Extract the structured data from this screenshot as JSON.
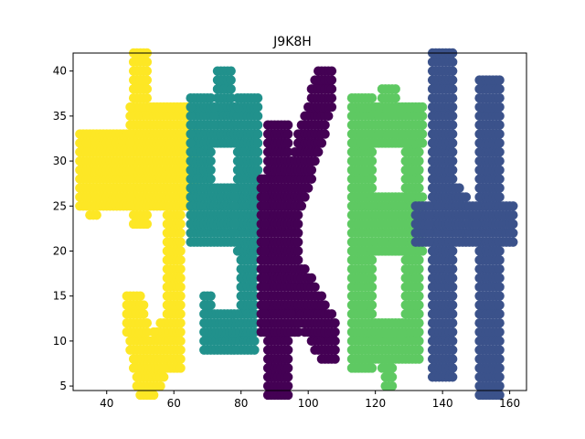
{
  "chart_data": {
    "type": "scatter",
    "title": "J9K8H",
    "xlabel": "",
    "ylabel": "",
    "xlim": [
      30,
      165
    ],
    "ylim": [
      4.5,
      42
    ],
    "xticks": [
      40,
      60,
      80,
      100,
      120,
      140,
      160
    ],
    "yticks": [
      5,
      10,
      15,
      20,
      25,
      30,
      35,
      40
    ],
    "grid": false,
    "legend": "none",
    "colors": {
      "J": "#fde725",
      "9": "#21918c",
      "K": "#440154",
      "8": "#5ec962",
      "H": "#3b528b"
    },
    "series": [
      {
        "letter": "J",
        "color_key": "J",
        "strokes": [
          {
            "x1": 50,
            "y1": 40,
            "x2": 50,
            "y2": 25,
            "w": 2
          },
          {
            "x1": 48,
            "y1": 35,
            "x2": 63,
            "y2": 35,
            "w": 1
          },
          {
            "x1": 36,
            "y1": 32,
            "x2": 36,
            "y2": 25,
            "w": 1
          },
          {
            "x1": 36,
            "y1": 29,
            "x2": 63,
            "y2": 29,
            "w": 4
          },
          {
            "x1": 60,
            "y1": 29,
            "x2": 60,
            "y2": 9,
            "w": 2
          },
          {
            "x1": 60,
            "y1": 11,
            "x2": 52,
            "y2": 6,
            "w": 2
          },
          {
            "x1": 52,
            "y1": 6,
            "x2": 48,
            "y2": 13,
            "w": 2
          }
        ]
      },
      {
        "letter": "9",
        "color_key": "9",
        "strokes": [
          {
            "x1": 75,
            "y1": 38,
            "x2": 75,
            "y2": 36,
            "w": 2
          },
          {
            "x1": 68,
            "y1": 34,
            "x2": 82,
            "y2": 34,
            "w": 2
          },
          {
            "x1": 68,
            "y1": 34,
            "x2": 68,
            "y2": 24,
            "w": 3
          },
          {
            "x1": 82,
            "y1": 34,
            "x2": 82,
            "y2": 23,
            "w": 3
          },
          {
            "x1": 68,
            "y1": 24,
            "x2": 82,
            "y2": 24,
            "w": 3
          },
          {
            "x1": 82,
            "y1": 23,
            "x2": 82,
            "y2": 11,
            "w": 2
          },
          {
            "x1": 82,
            "y1": 11,
            "x2": 72,
            "y2": 11,
            "w": 2
          },
          {
            "x1": 70,
            "y1": 14,
            "x2": 70,
            "y2": 10,
            "w": 1
          }
        ]
      },
      {
        "letter": "K",
        "color_key": "K",
        "strokes": [
          {
            "x1": 91,
            "y1": 31,
            "x2": 91,
            "y2": 7,
            "w": 3
          },
          {
            "x1": 87,
            "y1": 27,
            "x2": 87,
            "y2": 12,
            "w": 1
          },
          {
            "x1": 92,
            "y1": 22,
            "x2": 105,
            "y2": 38,
            "w": 2
          },
          {
            "x1": 92,
            "y1": 19,
            "x2": 106,
            "y2": 10,
            "w": 2
          },
          {
            "x1": 96,
            "y1": 29,
            "x2": 96,
            "y2": 12,
            "w": 1
          }
        ]
      },
      {
        "letter": "8",
        "color_key": "8",
        "strokes": [
          {
            "x1": 124,
            "y1": 36,
            "x2": 124,
            "y2": 35,
            "w": 2
          },
          {
            "x1": 116,
            "y1": 34,
            "x2": 132,
            "y2": 34,
            "w": 2
          },
          {
            "x1": 116,
            "y1": 34,
            "x2": 116,
            "y2": 10,
            "w": 3
          },
          {
            "x1": 131,
            "y1": 34,
            "x2": 131,
            "y2": 10,
            "w": 2
          },
          {
            "x1": 116,
            "y1": 23,
            "x2": 131,
            "y2": 23,
            "w": 3
          },
          {
            "x1": 116,
            "y1": 10,
            "x2": 130,
            "y2": 10,
            "w": 2
          },
          {
            "x1": 123,
            "y1": 8,
            "x2": 124,
            "y2": 6,
            "w": 1
          }
        ]
      },
      {
        "letter": "H",
        "color_key": "H",
        "strokes": [
          {
            "x1": 140,
            "y1": 39,
            "x2": 140,
            "y2": 9,
            "w": 3
          },
          {
            "x1": 154,
            "y1": 36,
            "x2": 154,
            "y2": 7,
            "w": 3
          },
          {
            "x1": 134,
            "y1": 23,
            "x2": 159,
            "y2": 23,
            "w": 2
          },
          {
            "x1": 143,
            "y1": 26,
            "x2": 147,
            "y2": 24,
            "w": 1
          }
        ]
      }
    ]
  }
}
